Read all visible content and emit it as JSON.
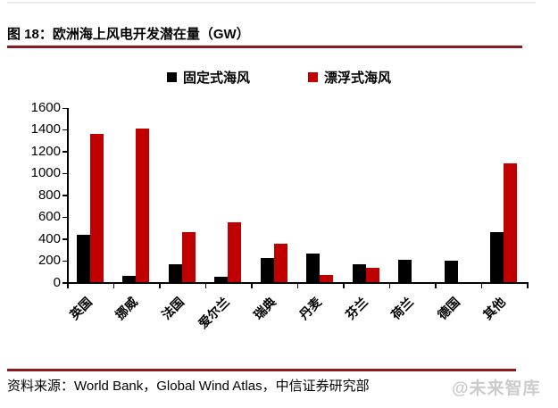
{
  "page": {
    "title": "图 18：欧洲海上风电开发潜在量（GW）",
    "source": "资料来源：World Bank，Global Wind Atlas，中信证券研究部",
    "watermark": "@未来智库",
    "accent_color": "#8B1A21"
  },
  "chart_data": {
    "type": "bar",
    "title": "欧洲海上风电开发潜在量（GW）",
    "categories": [
      "英国",
      "挪威",
      "法国",
      "爱尔兰",
      "瑞典",
      "丹麦",
      "芬兰",
      "荷兰",
      "德国",
      "其他"
    ],
    "series": [
      {
        "name": "固定式海风",
        "color": "#000000",
        "values": [
          430,
          55,
          165,
          50,
          225,
          265,
          165,
          205,
          200,
          455
        ]
      },
      {
        "name": "漂浮式海风",
        "color": "#C00000",
        "values": [
          1360,
          1410,
          455,
          550,
          350,
          65,
          130,
          0,
          0,
          1090
        ]
      }
    ],
    "xlabel": "",
    "ylabel": "",
    "ylim": [
      0,
      1600
    ],
    "ytick_step": 200,
    "grid": false,
    "legend_position": "top"
  }
}
